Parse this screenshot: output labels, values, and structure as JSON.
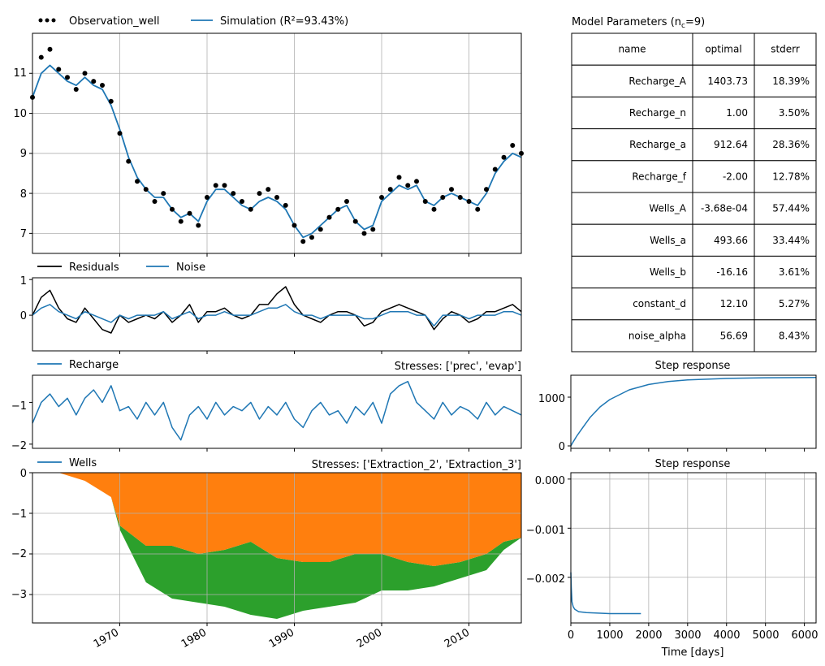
{
  "colors": {
    "observation": "#000000",
    "simulation": "#1f77b4",
    "residuals": "#000000",
    "noise": "#1f77b4",
    "recharge": "#1f77b4",
    "extraction_2": "#ff7f0e",
    "extraction_3": "#2ca02c",
    "grid": "#b0b0b0"
  },
  "panels": {
    "main": {
      "legend": [
        "Observation_well",
        "Simulation (R²=93.43%)"
      ],
      "yticks": [
        "7",
        "8",
        "9",
        "10",
        "11"
      ]
    },
    "residuals": {
      "legend": [
        "Residuals",
        "Noise"
      ],
      "yticks": [
        "0",
        "1"
      ]
    },
    "recharge": {
      "legend": [
        "Recharge"
      ],
      "stresses": "Stresses: ['prec', 'evap']",
      "yticks": [
        "−2",
        "−1"
      ]
    },
    "wells": {
      "legend": [
        "Wells"
      ],
      "stresses": "Stresses: ['Extraction_2', 'Extraction_3']",
      "yticks": [
        "−3",
        "−2",
        "−1",
        "0"
      ],
      "xticks": [
        "1970",
        "1980",
        "1990",
        "2000",
        "2010"
      ]
    },
    "params": {
      "title": "Model Parameters (n",
      "title_sub": "c",
      "title_end": "=9)",
      "headers": [
        "name",
        "optimal",
        "stderr"
      ],
      "rows": [
        [
          "Recharge_A",
          "1403.73",
          "18.39%"
        ],
        [
          "Recharge_n",
          "1.00",
          "3.50%"
        ],
        [
          "Recharge_a",
          "912.64",
          "28.36%"
        ],
        [
          "Recharge_f",
          "-2.00",
          "12.78%"
        ],
        [
          "Wells_A",
          "-3.68e-04",
          "57.44%"
        ],
        [
          "Wells_a",
          "493.66",
          "33.44%"
        ],
        [
          "Wells_b",
          "-16.16",
          "3.61%"
        ],
        [
          "constant_d",
          "12.10",
          "5.27%"
        ],
        [
          "noise_alpha",
          "56.69",
          "8.43%"
        ]
      ]
    },
    "step1": {
      "title": "Step response",
      "yticks": [
        "0",
        "1000"
      ]
    },
    "step2": {
      "title": "Step response",
      "yticks": [
        "−0.002",
        "−0.001",
        "0.000"
      ],
      "xticks": [
        "0",
        "1000",
        "2000",
        "3000",
        "4000",
        "5000",
        "6000"
      ],
      "xlabel": "Time [days]"
    }
  },
  "chart_data": [
    {
      "type": "line",
      "title": "",
      "xlabel": "",
      "ylabel": "",
      "xlim": [
        1960,
        2016
      ],
      "ylim": [
        6.5,
        12.0
      ],
      "series": [
        {
          "name": "Observation_well",
          "style": "scatter",
          "color": "#000000",
          "x": [
            1960,
            1961,
            1962,
            1963,
            1964,
            1965,
            1966,
            1967,
            1968,
            1969,
            1970,
            1971,
            1972,
            1973,
            1974,
            1975,
            1976,
            1977,
            1978,
            1979,
            1980,
            1981,
            1982,
            1983,
            1984,
            1985,
            1986,
            1987,
            1988,
            1989,
            1990,
            1991,
            1992,
            1993,
            1994,
            1995,
            1996,
            1997,
            1998,
            1999,
            2000,
            2001,
            2002,
            2003,
            2004,
            2005,
            2006,
            2007,
            2008,
            2009,
            2010,
            2011,
            2012,
            2013,
            2014,
            2015,
            2016
          ],
          "y": [
            10.4,
            11.4,
            11.6,
            11.1,
            10.9,
            10.6,
            11.0,
            10.8,
            10.7,
            10.3,
            9.5,
            8.8,
            8.3,
            8.1,
            7.8,
            8.0,
            7.6,
            7.3,
            7.5,
            7.2,
            7.9,
            8.2,
            8.2,
            8.0,
            7.8,
            7.6,
            8.0,
            8.1,
            7.9,
            7.7,
            7.2,
            6.8,
            6.9,
            7.1,
            7.4,
            7.6,
            7.8,
            7.3,
            7.0,
            7.1,
            7.9,
            8.1,
            8.4,
            8.2,
            8.3,
            7.8,
            7.6,
            7.9,
            8.1,
            7.9,
            7.8,
            7.6,
            8.1,
            8.6,
            8.9,
            9.2,
            9.0
          ]
        },
        {
          "name": "Simulation (R²=93.43%)",
          "style": "line",
          "color": "#1f77b4",
          "x": [
            1960,
            1961,
            1962,
            1963,
            1964,
            1965,
            1966,
            1967,
            1968,
            1969,
            1970,
            1971,
            1972,
            1973,
            1974,
            1975,
            1976,
            1977,
            1978,
            1979,
            1980,
            1981,
            1982,
            1983,
            1984,
            1985,
            1986,
            1987,
            1988,
            1989,
            1990,
            1991,
            1992,
            1993,
            1994,
            1995,
            1996,
            1997,
            1998,
            1999,
            2000,
            2001,
            2002,
            2003,
            2004,
            2005,
            2006,
            2007,
            2008,
            2009,
            2010,
            2011,
            2012,
            2013,
            2014,
            2015,
            2016
          ],
          "y": [
            10.4,
            11.0,
            11.2,
            11.0,
            10.8,
            10.7,
            10.9,
            10.7,
            10.6,
            10.2,
            9.6,
            8.9,
            8.4,
            8.1,
            7.9,
            7.9,
            7.6,
            7.4,
            7.5,
            7.3,
            7.8,
            8.1,
            8.1,
            7.9,
            7.7,
            7.6,
            7.8,
            7.9,
            7.8,
            7.6,
            7.2,
            6.9,
            7.0,
            7.2,
            7.4,
            7.6,
            7.7,
            7.3,
            7.1,
            7.2,
            7.8,
            8.0,
            8.2,
            8.1,
            8.2,
            7.8,
            7.7,
            7.9,
            8.0,
            7.9,
            7.8,
            7.7,
            8.0,
            8.5,
            8.8,
            9.0,
            8.9
          ]
        }
      ]
    },
    {
      "type": "line",
      "xlim": [
        1960,
        2016
      ],
      "ylim": [
        -1.0,
        1.05
      ],
      "series": [
        {
          "name": "Residuals",
          "color": "#000000",
          "x": [
            1960,
            1961,
            1962,
            1963,
            1964,
            1965,
            1966,
            1967,
            1968,
            1969,
            1970,
            1971,
            1972,
            1973,
            1974,
            1975,
            1976,
            1977,
            1978,
            1979,
            1980,
            1981,
            1982,
            1983,
            1984,
            1985,
            1986,
            1987,
            1988,
            1989,
            1990,
            1991,
            1992,
            1993,
            1994,
            1995,
            1996,
            1997,
            1998,
            1999,
            2000,
            2001,
            2002,
            2003,
            2004,
            2005,
            2006,
            2007,
            2008,
            2009,
            2010,
            2011,
            2012,
            2013,
            2014,
            2015,
            2016
          ],
          "y": [
            0.0,
            0.5,
            0.7,
            0.2,
            -0.1,
            -0.2,
            0.2,
            -0.1,
            -0.4,
            -0.5,
            0.0,
            -0.2,
            -0.1,
            0.0,
            -0.1,
            0.1,
            -0.2,
            0.0,
            0.3,
            -0.2,
            0.1,
            0.1,
            0.2,
            0.0,
            -0.1,
            0.0,
            0.3,
            0.3,
            0.6,
            0.8,
            0.3,
            0.0,
            -0.1,
            -0.2,
            0.0,
            0.1,
            0.1,
            0.0,
            -0.3,
            -0.2,
            0.1,
            0.2,
            0.3,
            0.2,
            0.1,
            0.0,
            -0.4,
            -0.1,
            0.1,
            0.0,
            -0.2,
            -0.1,
            0.1,
            0.1,
            0.2,
            0.3,
            0.1
          ]
        },
        {
          "name": "Noise",
          "color": "#1f77b4",
          "x": [
            1960,
            1961,
            1962,
            1963,
            1964,
            1965,
            1966,
            1967,
            1968,
            1969,
            1970,
            1971,
            1972,
            1973,
            1974,
            1975,
            1976,
            1977,
            1978,
            1979,
            1980,
            1981,
            1982,
            1983,
            1984,
            1985,
            1986,
            1987,
            1988,
            1989,
            1990,
            1991,
            1992,
            1993,
            1994,
            1995,
            1996,
            1997,
            1998,
            1999,
            2000,
            2001,
            2002,
            2003,
            2004,
            2005,
            2006,
            2007,
            2008,
            2009,
            2010,
            2011,
            2012,
            2013,
            2014,
            2015,
            2016
          ],
          "y": [
            0.0,
            0.2,
            0.3,
            0.1,
            0.0,
            -0.1,
            0.1,
            0.0,
            -0.1,
            -0.2,
            0.0,
            -0.1,
            0.0,
            0.0,
            0.0,
            0.1,
            -0.1,
            0.0,
            0.1,
            -0.1,
            0.0,
            0.0,
            0.1,
            0.0,
            0.0,
            0.0,
            0.1,
            0.2,
            0.2,
            0.3,
            0.1,
            0.0,
            0.0,
            -0.1,
            0.0,
            0.0,
            0.0,
            0.0,
            -0.1,
            -0.1,
            0.0,
            0.1,
            0.1,
            0.1,
            0.0,
            0.0,
            -0.3,
            0.0,
            0.0,
            0.0,
            -0.1,
            0.0,
            0.0,
            0.0,
            0.1,
            0.1,
            0.0
          ]
        }
      ]
    },
    {
      "type": "line",
      "xlim": [
        1960,
        2016
      ],
      "ylim": [
        -2.1,
        -0.35
      ],
      "series": [
        {
          "name": "Recharge",
          "color": "#1f77b4",
          "x": [
            1960,
            1961,
            1962,
            1963,
            1964,
            1965,
            1966,
            1967,
            1968,
            1969,
            1970,
            1971,
            1972,
            1973,
            1974,
            1975,
            1976,
            1977,
            1978,
            1979,
            1980,
            1981,
            1982,
            1983,
            1984,
            1985,
            1986,
            1987,
            1988,
            1989,
            1990,
            1991,
            1992,
            1993,
            1994,
            1995,
            1996,
            1997,
            1998,
            1999,
            2000,
            2001,
            2002,
            2003,
            2004,
            2005,
            2006,
            2007,
            2008,
            2009,
            2010,
            2011,
            2012,
            2013,
            2014,
            2015,
            2016
          ],
          "y": [
            -1.5,
            -1.0,
            -0.8,
            -1.1,
            -0.9,
            -1.3,
            -0.9,
            -0.7,
            -1.0,
            -0.6,
            -1.2,
            -1.1,
            -1.4,
            -1.0,
            -1.3,
            -1.0,
            -1.6,
            -1.9,
            -1.3,
            -1.1,
            -1.4,
            -1.0,
            -1.3,
            -1.1,
            -1.2,
            -1.0,
            -1.4,
            -1.1,
            -1.3,
            -1.0,
            -1.4,
            -1.6,
            -1.2,
            -1.0,
            -1.3,
            -1.2,
            -1.5,
            -1.1,
            -1.3,
            -1.0,
            -1.5,
            -0.8,
            -0.6,
            -0.5,
            -1.0,
            -1.2,
            -1.4,
            -1.0,
            -1.3,
            -1.1,
            -1.2,
            -1.4,
            -1.0,
            -1.3,
            -1.1,
            -1.2,
            -1.3
          ]
        }
      ]
    },
    {
      "type": "area",
      "xlim": [
        1960,
        2016
      ],
      "ylim": [
        -3.7,
        0
      ],
      "series": [
        {
          "name": "Extraction_2",
          "color": "#ff7f0e",
          "x": [
            1963,
            1966,
            1969,
            1970,
            1973,
            1976,
            1979,
            1982,
            1985,
            1988,
            1991,
            1994,
            1997,
            2000,
            2003,
            2006,
            2009,
            2012,
            2014,
            2016
          ],
          "y": [
            0,
            -0.2,
            -0.6,
            -1.3,
            -1.8,
            -1.8,
            -2.0,
            -1.9,
            -1.7,
            -2.1,
            -2.2,
            -2.2,
            -2.0,
            -2.0,
            -2.2,
            -2.3,
            -2.2,
            -2.0,
            -1.7,
            -1.6
          ]
        },
        {
          "name": "Extraction_3",
          "color": "#2ca02c",
          "x": [
            1963,
            1966,
            1969,
            1970,
            1973,
            1976,
            1979,
            1982,
            1985,
            1988,
            1991,
            1994,
            1997,
            2000,
            2003,
            2006,
            2009,
            2012,
            2014,
            2016
          ],
          "y": [
            0,
            -0.2,
            -0.6,
            -1.4,
            -2.7,
            -3.1,
            -3.2,
            -3.3,
            -3.5,
            -3.6,
            -3.4,
            -3.3,
            -3.2,
            -2.9,
            -2.9,
            -2.8,
            -2.6,
            -2.4,
            -1.9,
            -1.6
          ]
        }
      ]
    },
    {
      "type": "line",
      "title": "Step response",
      "xlim": [
        0,
        6300
      ],
      "ylim": [
        -50,
        1450
      ],
      "series": [
        {
          "name": "Recharge",
          "color": "#1f77b4",
          "x": [
            0,
            50,
            150,
            300,
            500,
            750,
            1000,
            1500,
            2000,
            2500,
            3000,
            4000,
            5000,
            6300
          ],
          "y": [
            0,
            70,
            200,
            370,
            590,
            800,
            950,
            1150,
            1260,
            1320,
            1355,
            1385,
            1398,
            1403
          ]
        }
      ]
    },
    {
      "type": "line",
      "title": "Step response",
      "xlabel": "Time [days]",
      "xlim": [
        0,
        6300
      ],
      "ylim": [
        -0.00293,
        0.00013
      ],
      "series": [
        {
          "name": "Wells",
          "color": "#1f77b4",
          "x": [
            0,
            10,
            30,
            60,
            100,
            200,
            400,
            700,
            1000,
            1400,
            1800
          ],
          "y": [
            -0.0019,
            -0.0022,
            -0.0025,
            -0.0026,
            -0.00265,
            -0.0027,
            -0.00272,
            -0.00273,
            -0.00274,
            -0.00274,
            -0.00274
          ]
        }
      ]
    }
  ]
}
